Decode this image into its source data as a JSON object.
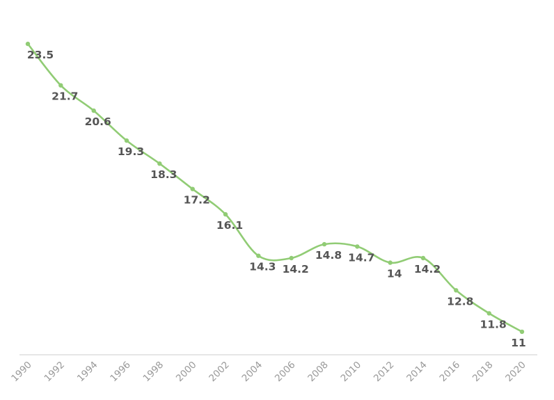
{
  "chart_data": {
    "type": "line",
    "title": "",
    "xlabel": "",
    "ylabel": "",
    "categories": [
      "1990",
      "1992",
      "1994",
      "1996",
      "1998",
      "2000",
      "2002",
      "2004",
      "2006",
      "2008",
      "2010",
      "2012",
      "2014",
      "2016",
      "2018",
      "2020"
    ],
    "series": [
      {
        "name": "value",
        "values": [
          23.5,
          21.7,
          20.6,
          19.3,
          18.3,
          17.2,
          16.1,
          14.3,
          14.2,
          14.8,
          14.7,
          14,
          14.2,
          12.8,
          11.8,
          11
        ],
        "value_labels": [
          "23.5",
          "21.7",
          "20.6",
          "19.3",
          "18.3",
          "17.2",
          "16.1",
          "14.3",
          "14.2",
          "14.8",
          "14.7",
          "14",
          "14.2",
          "12.8",
          "11.8",
          "11"
        ]
      }
    ],
    "ylim": [
      10,
      24.5
    ],
    "smooth": true,
    "grid": false,
    "legend_position": "none",
    "x_axis_label_rotation": 45,
    "colors": {
      "line": "#91cc75",
      "marker": "#91cc75",
      "data_label": "#555555",
      "axis_label": "#999999",
      "axis_line": "#cccccc",
      "background": "#ffffff"
    }
  }
}
